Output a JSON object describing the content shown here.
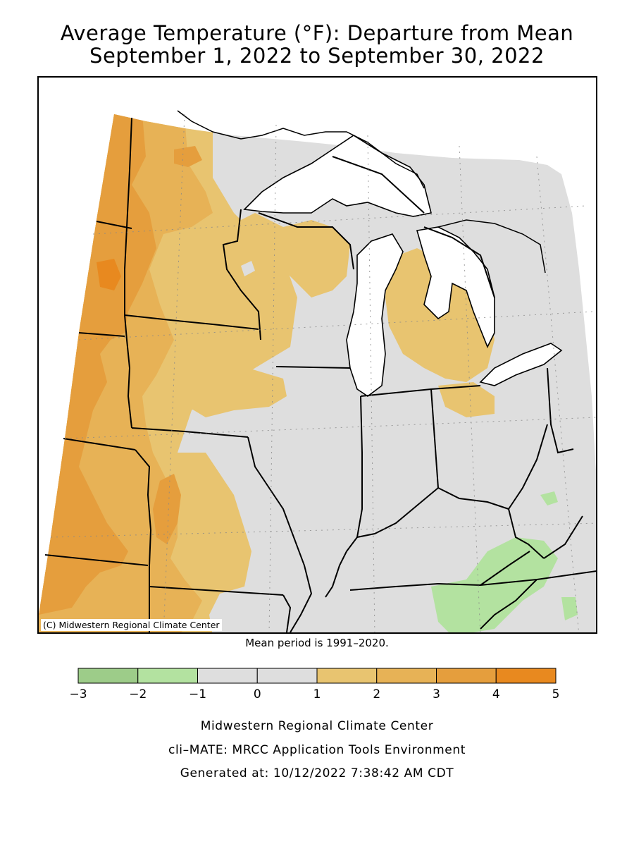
{
  "title": {
    "line1": "Average Temperature (°F): Departure from Mean",
    "line2": "September 1, 2022 to September 30, 2022"
  },
  "map": {
    "copyright": "(C) Midwestern Regional Climate Center",
    "mean_period": "Mean period is 1991–2020.",
    "colors": {
      "water": "#ffffff",
      "neg_2_1": "#b3e2a0",
      "neg_1_1": "#dedede",
      "pos_1_2": "#e8c470",
      "pos_2_3": "#e7b256",
      "pos_3_4": "#e59e3d",
      "pos_4_5": "#e8891f"
    }
  },
  "legend": {
    "ticks": [
      "−3",
      "−2",
      "−1",
      "0",
      "1",
      "2",
      "3",
      "4",
      "5"
    ],
    "bins": [
      {
        "min": -3,
        "max": -2,
        "color": "#9dcc89"
      },
      {
        "min": -2,
        "max": -1,
        "color": "#b3e2a0"
      },
      {
        "min": -1,
        "max": 0,
        "color": "#dedede"
      },
      {
        "min": 0,
        "max": 1,
        "color": "#dedede"
      },
      {
        "min": 1,
        "max": 2,
        "color": "#e8c470"
      },
      {
        "min": 2,
        "max": 3,
        "color": "#e7b256"
      },
      {
        "min": 3,
        "max": 4,
        "color": "#e59e3d"
      },
      {
        "min": 4,
        "max": 5,
        "color": "#e8891f"
      }
    ]
  },
  "footer": {
    "line1": "Midwestern Regional Climate Center",
    "line2": "cli–MATE: MRCC Application Tools Environment",
    "line3": "Generated at: 10/12/2022 7:38:42 AM CDT"
  }
}
